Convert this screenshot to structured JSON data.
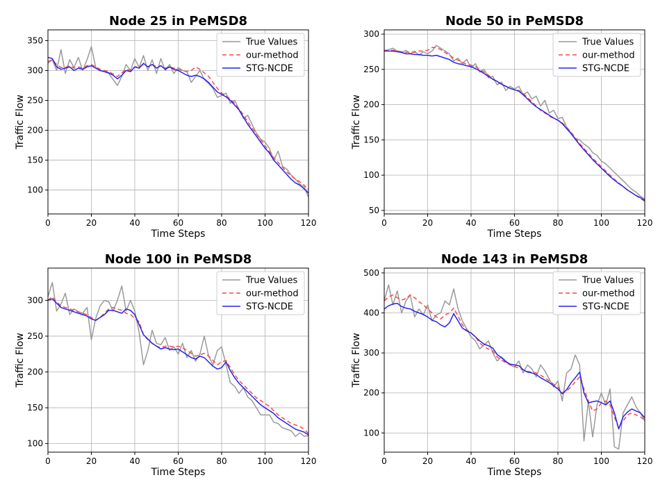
{
  "chart_data": [
    {
      "type": "line",
      "title": "Node 25 in PeMSD8",
      "xlabel": "Time Steps",
      "ylabel": "Traffic Flow",
      "xlim": [
        0,
        120
      ],
      "ylim": [
        60,
        368
      ],
      "xticks": [
        0,
        20,
        40,
        60,
        80,
        100,
        120
      ],
      "yticks": [
        100,
        150,
        200,
        250,
        300,
        350
      ],
      "grid": true,
      "legend_position": "top-right",
      "x": [
        0,
        2,
        4,
        6,
        8,
        10,
        12,
        14,
        16,
        18,
        20,
        22,
        24,
        26,
        28,
        30,
        32,
        34,
        36,
        38,
        40,
        42,
        44,
        46,
        48,
        50,
        52,
        54,
        56,
        58,
        60,
        62,
        64,
        66,
        68,
        70,
        72,
        74,
        76,
        78,
        80,
        82,
        84,
        86,
        88,
        90,
        92,
        94,
        96,
        98,
        100,
        102,
        104,
        106,
        108,
        110,
        112,
        114,
        116,
        118,
        120
      ],
      "series": [
        {
          "name": "True Values",
          "color": "#999999",
          "dash": "",
          "values": [
            312,
            318,
            300,
            335,
            295,
            318,
            305,
            322,
            300,
            318,
            340,
            305,
            300,
            298,
            295,
            285,
            275,
            290,
            310,
            300,
            320,
            305,
            325,
            300,
            318,
            295,
            320,
            300,
            310,
            295,
            305,
            300,
            298,
            280,
            290,
            300,
            285,
            278,
            270,
            255,
            258,
            262,
            245,
            250,
            235,
            220,
            225,
            210,
            195,
            185,
            180,
            170,
            150,
            165,
            140,
            135,
            125,
            118,
            110,
            105,
            88
          ]
        },
        {
          "name": "our-method",
          "color": "#ff4444",
          "dash": "6,4",
          "values": [
            315,
            318,
            310,
            305,
            305,
            308,
            304,
            306,
            304,
            308,
            310,
            306,
            302,
            300,
            298,
            294,
            290,
            296,
            302,
            300,
            306,
            306,
            310,
            306,
            310,
            306,
            308,
            304,
            306,
            304,
            302,
            300,
            298,
            300,
            306,
            302,
            296,
            290,
            280,
            270,
            262,
            258,
            252,
            245,
            236,
            226,
            214,
            204,
            194,
            184,
            174,
            164,
            154,
            146,
            138,
            130,
            124,
            118,
            114,
            108,
            100
          ]
        },
        {
          "name": "STG-NCDE",
          "color": "#2222ee",
          "dash": "",
          "values": [
            322,
            320,
            306,
            302,
            304,
            306,
            300,
            304,
            302,
            306,
            308,
            304,
            300,
            298,
            296,
            292,
            286,
            292,
            300,
            298,
            306,
            304,
            312,
            306,
            310,
            304,
            308,
            302,
            306,
            302,
            300,
            296,
            292,
            290,
            292,
            290,
            286,
            280,
            272,
            264,
            260,
            256,
            250,
            242,
            234,
            222,
            210,
            200,
            190,
            180,
            170,
            162,
            150,
            142,
            134,
            126,
            118,
            112,
            108,
            102,
            95
          ]
        }
      ]
    },
    {
      "type": "line",
      "title": "Node 50 in PeMSD8",
      "xlabel": "Time Steps",
      "ylabel": "Traffic Flow",
      "xlim": [
        0,
        120
      ],
      "ylim": [
        45,
        306
      ],
      "xticks": [
        0,
        20,
        40,
        60,
        80,
        100,
        120
      ],
      "yticks": [
        50,
        100,
        150,
        200,
        250,
        300
      ],
      "grid": true,
      "legend_position": "top-right",
      "x": [
        0,
        2,
        4,
        6,
        8,
        10,
        12,
        14,
        16,
        18,
        20,
        22,
        24,
        26,
        28,
        30,
        32,
        34,
        36,
        38,
        40,
        42,
        44,
        46,
        48,
        50,
        52,
        54,
        56,
        58,
        60,
        62,
        64,
        66,
        68,
        70,
        72,
        74,
        76,
        78,
        80,
        82,
        84,
        86,
        88,
        90,
        92,
        94,
        96,
        98,
        100,
        102,
        104,
        106,
        108,
        110,
        112,
        114,
        116,
        118,
        120
      ],
      "series": [
        {
          "name": "True Values",
          "color": "#999999",
          "dash": "",
          "values": [
            276,
            278,
            280,
            276,
            274,
            277,
            272,
            276,
            270,
            275,
            272,
            276,
            284,
            280,
            276,
            272,
            262,
            266,
            258,
            264,
            252,
            258,
            246,
            250,
            238,
            240,
            228,
            232,
            220,
            226,
            222,
            226,
            214,
            218,
            208,
            212,
            198,
            206,
            188,
            192,
            180,
            182,
            168,
            160,
            152,
            150,
            144,
            140,
            132,
            128,
            120,
            116,
            110,
            104,
            98,
            92,
            86,
            80,
            76,
            70,
            66
          ]
        },
        {
          "name": "our-method",
          "color": "#ff4444",
          "dash": "6,4",
          "values": [
            277,
            277,
            277,
            276,
            275,
            274,
            275,
            274,
            276,
            276,
            277,
            281,
            281,
            278,
            274,
            270,
            266,
            263,
            260,
            257,
            256,
            254,
            250,
            246,
            242,
            236,
            232,
            229,
            226,
            223,
            221,
            220,
            216,
            210,
            204,
            198,
            192,
            188,
            184,
            180,
            178,
            174,
            168,
            161,
            153,
            145,
            138,
            131,
            124,
            118,
            112,
            106,
            100,
            94,
            89,
            84,
            79,
            75,
            71,
            67,
            63
          ]
        },
        {
          "name": "STG-NCDE",
          "color": "#2222ee",
          "dash": "",
          "values": [
            276,
            276,
            276,
            275,
            274,
            272,
            272,
            271,
            271,
            270,
            270,
            269,
            270,
            268,
            266,
            264,
            260,
            258,
            257,
            255,
            254,
            251,
            248,
            244,
            240,
            236,
            233,
            229,
            226,
            223,
            221,
            219,
            214,
            208,
            202,
            197,
            193,
            189,
            185,
            181,
            178,
            173,
            166,
            159,
            151,
            143,
            136,
            129,
            122,
            116,
            110,
            104,
            98,
            93,
            88,
            84,
            79,
            75,
            71,
            68,
            64
          ]
        }
      ]
    },
    {
      "type": "line",
      "title": "Node 100 in PeMSD8",
      "xlabel": "Time Steps",
      "ylabel": "Traffic Flow",
      "xlim": [
        0,
        120
      ],
      "ylim": [
        88,
        345
      ],
      "xticks": [
        0,
        20,
        40,
        60,
        80,
        100,
        120
      ],
      "yticks": [
        100,
        150,
        200,
        250,
        300
      ],
      "grid": true,
      "legend_position": "top-right",
      "x": [
        0,
        2,
        4,
        6,
        8,
        10,
        12,
        14,
        16,
        18,
        20,
        22,
        24,
        26,
        28,
        30,
        32,
        34,
        36,
        38,
        40,
        42,
        44,
        46,
        48,
        50,
        52,
        54,
        56,
        58,
        60,
        62,
        64,
        66,
        68,
        70,
        72,
        74,
        76,
        78,
        80,
        82,
        84,
        86,
        88,
        90,
        92,
        94,
        96,
        98,
        100,
        102,
        104,
        106,
        108,
        110,
        112,
        114,
        116,
        118,
        120
      ],
      "series": [
        {
          "name": "True Values",
          "color": "#999999",
          "dash": "",
          "values": [
            305,
            325,
            285,
            295,
            310,
            280,
            288,
            284,
            282,
            290,
            245,
            275,
            292,
            300,
            298,
            285,
            300,
            320,
            285,
            300,
            285,
            255,
            210,
            230,
            258,
            240,
            238,
            248,
            230,
            235,
            225,
            240,
            220,
            230,
            215,
            225,
            250,
            222,
            210,
            230,
            235,
            210,
            185,
            180,
            170,
            178,
            165,
            160,
            150,
            140,
            140,
            140,
            130,
            128,
            122,
            120,
            118,
            110,
            115,
            110,
            111
          ]
        },
        {
          "name": "our-method",
          "color": "#ff4444",
          "dash": "6,4",
          "values": [
            300,
            305,
            298,
            292,
            290,
            288,
            286,
            284,
            282,
            280,
            276,
            272,
            276,
            282,
            288,
            290,
            288,
            286,
            282,
            280,
            275,
            270,
            252,
            245,
            240,
            236,
            234,
            236,
            236,
            235,
            236,
            234,
            230,
            226,
            222,
            224,
            226,
            222,
            216,
            210,
            214,
            216,
            206,
            196,
            188,
            182,
            176,
            170,
            164,
            160,
            156,
            152,
            146,
            140,
            136,
            132,
            128,
            126,
            124,
            120,
            114
          ]
        },
        {
          "name": "STG-NCDE",
          "color": "#2222ee",
          "dash": "",
          "values": [
            300,
            302,
            296,
            290,
            288,
            286,
            284,
            282,
            280,
            278,
            274,
            272,
            276,
            280,
            286,
            286,
            284,
            282,
            288,
            286,
            280,
            266,
            252,
            246,
            240,
            236,
            232,
            234,
            232,
            231,
            232,
            228,
            224,
            220,
            218,
            222,
            220,
            214,
            208,
            204,
            206,
            214,
            202,
            192,
            184,
            178,
            172,
            166,
            160,
            154,
            150,
            146,
            142,
            136,
            132,
            128,
            124,
            120,
            118,
            116,
            112
          ]
        }
      ]
    },
    {
      "type": "line",
      "title": "Node 143 in PeMSD8",
      "xlabel": "Time Steps",
      "ylabel": "Traffic Flow",
      "xlim": [
        0,
        120
      ],
      "ylim": [
        52,
        512
      ],
      "xticks": [
        0,
        20,
        40,
        60,
        80,
        100,
        120
      ],
      "yticks": [
        100,
        200,
        300,
        400,
        500
      ],
      "grid": true,
      "legend_position": "top-right",
      "x": [
        0,
        2,
        4,
        6,
        8,
        10,
        12,
        14,
        16,
        18,
        20,
        22,
        24,
        26,
        28,
        30,
        32,
        34,
        36,
        38,
        40,
        42,
        44,
        46,
        48,
        50,
        52,
        54,
        56,
        58,
        60,
        62,
        64,
        66,
        68,
        70,
        72,
        74,
        76,
        78,
        80,
        82,
        84,
        86,
        88,
        90,
        92,
        94,
        96,
        98,
        100,
        102,
        104,
        106,
        108,
        110,
        112,
        114,
        116,
        118,
        120
      ],
      "series": [
        {
          "name": "True Values",
          "color": "#999999",
          "dash": "",
          "values": [
            430,
            470,
            420,
            455,
            400,
            430,
            445,
            390,
            410,
            395,
            420,
            380,
            395,
            400,
            430,
            420,
            460,
            410,
            380,
            360,
            340,
            330,
            310,
            320,
            330,
            300,
            280,
            290,
            280,
            270,
            265,
            280,
            250,
            270,
            260,
            240,
            270,
            255,
            235,
            215,
            230,
            180,
            250,
            260,
            295,
            270,
            80,
            180,
            90,
            170,
            200,
            170,
            210,
            65,
            60,
            150,
            170,
            190,
            165,
            150,
            130
          ]
        },
        {
          "name": "our-method",
          "color": "#ff4444",
          "dash": "6,4",
          "values": [
            430,
            440,
            445,
            438,
            432,
            436,
            445,
            438,
            428,
            420,
            410,
            400,
            390,
            385,
            395,
            400,
            412,
            392,
            370,
            358,
            350,
            340,
            325,
            315,
            310,
            305,
            290,
            282,
            276,
            270,
            266,
            262,
            258,
            254,
            252,
            250,
            244,
            238,
            230,
            222,
            215,
            200,
            205,
            215,
            228,
            240,
            210,
            180,
            155,
            160,
            175,
            180,
            170,
            140,
            112,
            130,
            145,
            150,
            145,
            140,
            132
          ]
        },
        {
          "name": "STG-NCDE",
          "color": "#2222ee",
          "dash": "",
          "values": [
            410,
            418,
            422,
            424,
            416,
            412,
            410,
            404,
            400,
            396,
            390,
            382,
            378,
            370,
            365,
            375,
            398,
            380,
            362,
            355,
            350,
            340,
            330,
            322,
            318,
            312,
            296,
            288,
            278,
            272,
            270,
            268,
            258,
            252,
            250,
            246,
            238,
            232,
            226,
            218,
            210,
            198,
            208,
            225,
            238,
            252,
            200,
            175,
            178,
            180,
            176,
            170,
            180,
            150,
            110,
            140,
            152,
            160,
            155,
            150,
            138
          ]
        }
      ]
    }
  ]
}
